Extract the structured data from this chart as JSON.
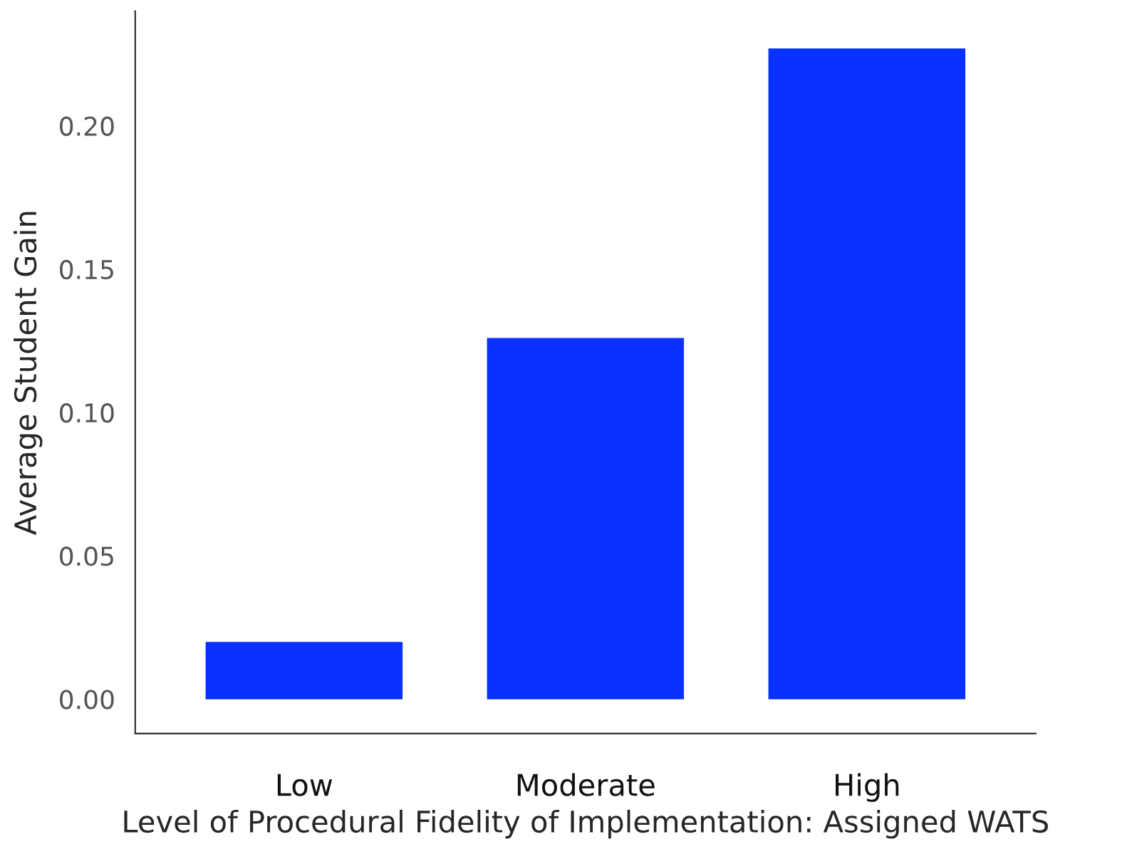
{
  "chart_data": {
    "type": "bar",
    "xlabel": "Level of Procedural Fidelity of Implementation: Assigned WATS",
    "ylabel": "Average Student Gain",
    "categories": [
      "Low",
      "Moderate",
      "High"
    ],
    "values": [
      0.02,
      0.126,
      0.227
    ],
    "color": "#0a32ff",
    "ylim": [
      -0.012,
      0.24
    ],
    "yticks": [
      {
        "value": 0,
        "label": "0.00"
      },
      {
        "value": 0.05,
        "label": "0.05"
      },
      {
        "value": 0.1,
        "label": "0.10"
      },
      {
        "value": 0.15,
        "label": "0.15"
      },
      {
        "value": 0.2,
        "label": "0.20"
      }
    ],
    "grid": false
  }
}
